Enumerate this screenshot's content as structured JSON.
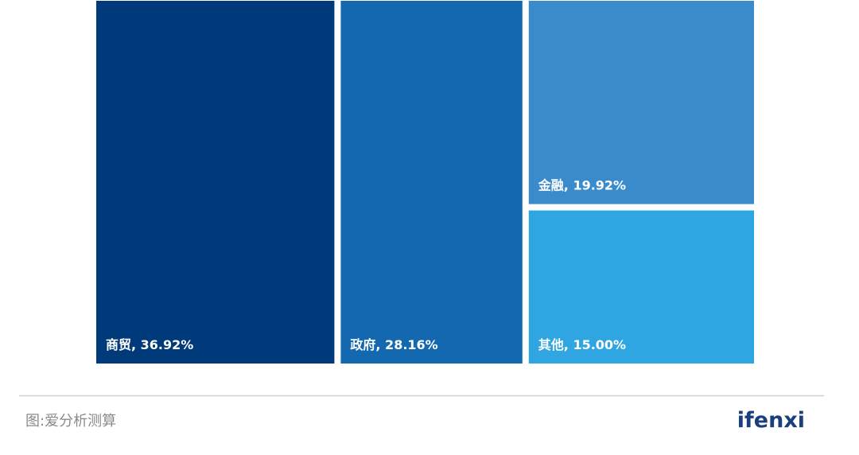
{
  "chart_data": {
    "type": "treemap",
    "values": [
      36.92,
      28.16,
      19.92,
      15.0
    ],
    "value_labels": [
      "商贸, 36.92%",
      "政府, 28.16%",
      "金融, 19.92%",
      "其他, 15.00%"
    ],
    "colors": [
      "#003a7a",
      "#1368b0",
      "#3a8bcc",
      "#2fa6e2"
    ],
    "source": "图:爱分析测算",
    "logo": "ifenxi"
  }
}
